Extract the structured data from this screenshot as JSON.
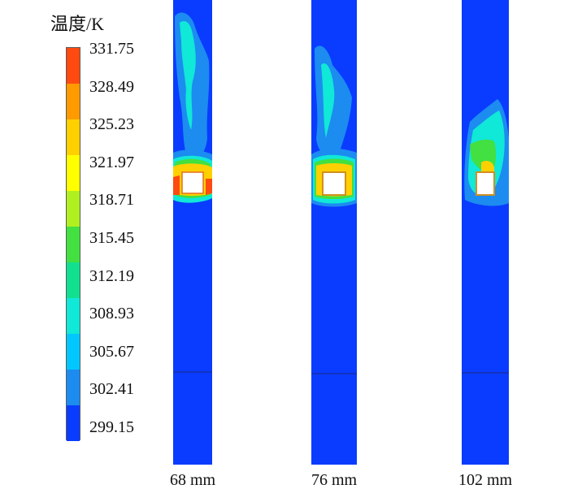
{
  "legend": {
    "title": "温度/K",
    "ticks": [
      "331.75",
      "328.49",
      "325.23",
      "321.97",
      "318.71",
      "315.45",
      "312.19",
      "308.93",
      "305.67",
      "302.41",
      "299.15"
    ],
    "colors": [
      "#ff4a10",
      "#ff9a00",
      "#ffd000",
      "#ffff00",
      "#b0f020",
      "#42e040",
      "#10e090",
      "#10e8d8",
      "#00c8ff",
      "#1c8cf0",
      "#0a3cff"
    ]
  },
  "panels": [
    {
      "label": "68 mm"
    },
    {
      "label": "76 mm"
    },
    {
      "label": "102 mm"
    }
  ],
  "field_colors": {
    "background": "#0a3cff",
    "low": "#1c8cf0",
    "mid": "#10e8d8",
    "warm": "#42e040",
    "hot": "#ffd000",
    "hottest": "#ff4a10"
  }
}
